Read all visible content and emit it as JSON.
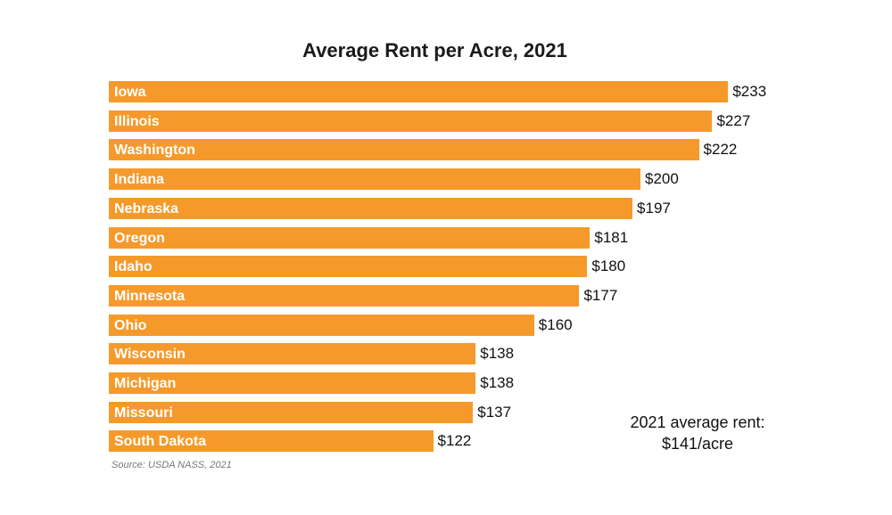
{
  "chart_data": {
    "type": "bar",
    "orientation": "horizontal",
    "title": "Average Rent per Acre, 2021",
    "categories": [
      "Iowa",
      "Illinois",
      "Washington",
      "Indiana",
      "Nebraska",
      "Oregon",
      "Idaho",
      "Minnesota",
      "Ohio",
      "Wisconsin",
      "Michigan",
      "Missouri",
      "South Dakota"
    ],
    "values": [
      233,
      227,
      222,
      200,
      197,
      181,
      180,
      177,
      160,
      138,
      138,
      137,
      122
    ],
    "value_labels": [
      "$233",
      "$227",
      "$222",
      "$200",
      "$197",
      "$181",
      "$180",
      "$177",
      "$160",
      "$138",
      "$138",
      "$137",
      "$122"
    ],
    "xlabel": "",
    "ylabel": "",
    "bar_color": "#f59a2a",
    "source": "Source: USDA NASS, 2021",
    "annotation": [
      "2021 average rent:",
      "$141/acre"
    ]
  }
}
